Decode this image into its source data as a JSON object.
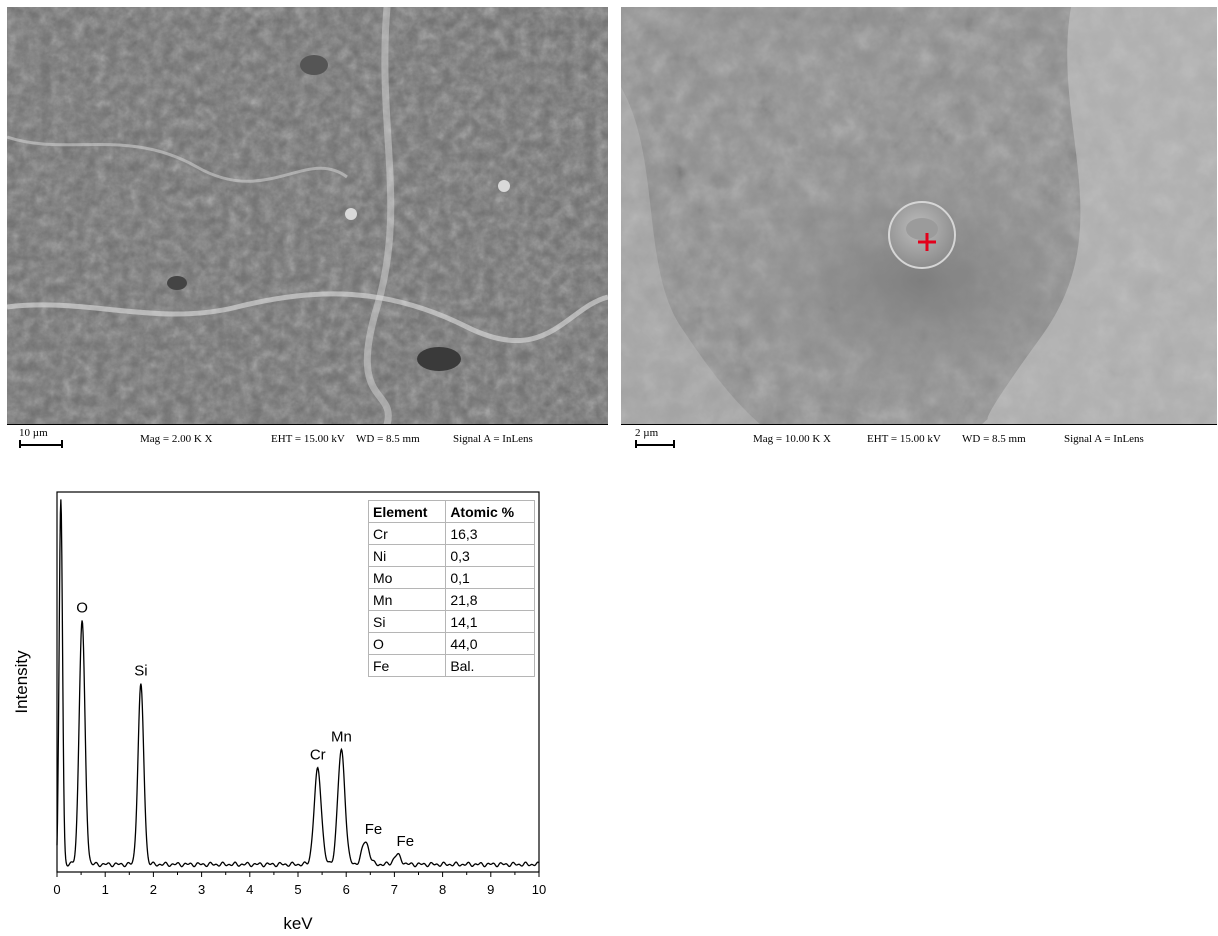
{
  "sem_left": {
    "scale_label": "10 µm",
    "mag": "Mag =   2.00 K X",
    "eht": "EHT = 15.00 kV",
    "wd": "WD =  8.5 mm",
    "signal": "Signal A = InLens"
  },
  "sem_right": {
    "scale_label": "2 µm",
    "mag": "Mag =   10.00 K X",
    "eht": "EHT = 15.00 kV",
    "wd": "WD =  8.5 mm",
    "signal": "Signal A = InLens",
    "marker_color": "#e3001b"
  },
  "table": {
    "headers": [
      "Element",
      "Atomic %"
    ],
    "rows": [
      [
        "Cr",
        "16,3"
      ],
      [
        "Ni",
        "0,3"
      ],
      [
        "Mo",
        "0,1"
      ],
      [
        "Mn",
        "21,8"
      ],
      [
        "Si",
        "14,1"
      ],
      [
        "O",
        "44,0"
      ],
      [
        "Fe",
        "Bal."
      ]
    ]
  },
  "chart_data": {
    "type": "line",
    "title": "",
    "xlabel": "keV",
    "ylabel": "Intensity",
    "xlim": [
      0,
      10
    ],
    "ylim": [
      0,
      1
    ],
    "xticks": [
      "0",
      "1",
      "2",
      "3",
      "4",
      "5",
      "6",
      "7",
      "8",
      "9",
      "10"
    ],
    "baseline": 0.02,
    "peaks": [
      {
        "label": "",
        "x": 0.08,
        "y": 0.96
      },
      {
        "label": "O",
        "x": 0.52,
        "y": 0.64
      },
      {
        "label": "Si",
        "x": 1.74,
        "y": 0.47
      },
      {
        "label": "Cr",
        "x": 5.41,
        "y": 0.25
      },
      {
        "label": "Mn",
        "x": 5.9,
        "y": 0.3
      },
      {
        "label": "Fe",
        "x": 6.4,
        "y": 0.06
      },
      {
        "label": "Fe",
        "x": 7.06,
        "y": 0.025
      }
    ],
    "grid": false
  }
}
